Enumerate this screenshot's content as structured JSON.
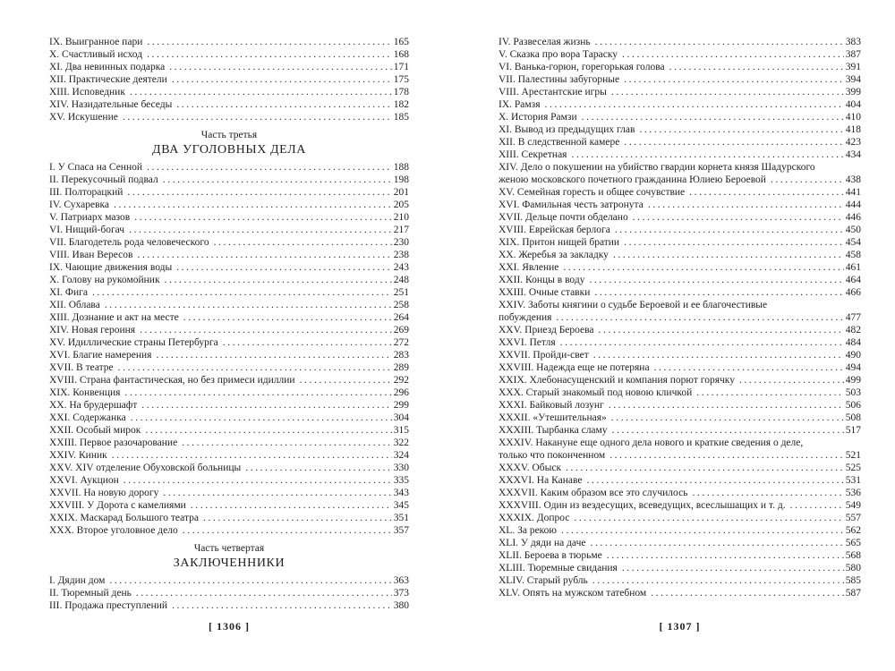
{
  "colors": {
    "background": "#ffffff",
    "text": "#1f1f1f"
  },
  "left_page": {
    "footer": "[ 1306 ]",
    "blocks": [
      {
        "type": "entries",
        "items": [
          {
            "t": "IX. Выигранное пари",
            "p": "165"
          },
          {
            "t": "X. Счастливый исход",
            "p": "168"
          },
          {
            "t": "XI. Два невинных подарка",
            "p": "171"
          },
          {
            "t": "XII. Практические деятели",
            "p": "175"
          },
          {
            "t": "XIII. Исповедник",
            "p": "178"
          },
          {
            "t": "XIV. Назидательные беседы",
            "p": "182"
          },
          {
            "t": "XV. Искушение",
            "p": "185"
          }
        ]
      },
      {
        "type": "heading",
        "part": "Часть третья",
        "title": "ДВА УГОЛОВНЫХ ДЕЛА"
      },
      {
        "type": "entries",
        "items": [
          {
            "t": "I. У Спаса на Сенной",
            "p": "188"
          },
          {
            "t": "II. Перекусочный подвал",
            "p": "198"
          },
          {
            "t": "III. Полторацкий",
            "p": "201"
          },
          {
            "t": "IV. Сухаревка",
            "p": "205"
          },
          {
            "t": "V. Патриарх мазов",
            "p": "210"
          },
          {
            "t": "VI. Нищий-богач",
            "p": "217"
          },
          {
            "t": "VII. Благодетель рода человеческого",
            "p": "230"
          },
          {
            "t": "VIII. Иван Вересов",
            "p": "238"
          },
          {
            "t": "IX. Чающие движения воды",
            "p": "243"
          },
          {
            "t": "X. Голову на рукомойник",
            "p": "248"
          },
          {
            "t": "XI. Фига",
            "p": "251"
          },
          {
            "t": "XII. Облава",
            "p": "258"
          },
          {
            "t": "XIII. Дознание и акт на месте",
            "p": "264"
          },
          {
            "t": "XIV. Новая героиня",
            "p": "269"
          },
          {
            "t": "XV. Идиллические страны Петербурга",
            "p": "272"
          },
          {
            "t": "XVI. Благие намерения",
            "p": "283"
          },
          {
            "t": "XVII. В театре",
            "p": "289"
          },
          {
            "t": "XVIII. Страна фантастическая, но без примеси идиллии",
            "p": "292"
          },
          {
            "t": "XIX. Конвенция",
            "p": "296"
          },
          {
            "t": "XX. На брудершафт",
            "p": "299"
          },
          {
            "t": "XXI. Содержанка",
            "p": "304"
          },
          {
            "t": "XXII. Особый мирок",
            "p": "315"
          },
          {
            "t": "XXIII. Первое разочарование",
            "p": "322"
          },
          {
            "t": "XXIV. Киник",
            "p": "324"
          },
          {
            "t": "XXV. XIV отделение Обуховской больницы",
            "p": "330"
          },
          {
            "t": "XXVI. Аукцион",
            "p": "335"
          },
          {
            "t": "XXVII. На новую дорогу",
            "p": "343"
          },
          {
            "t": "XXVIII. У Дорота с камелиями",
            "p": "345"
          },
          {
            "t": "XXIX. Маскарад Большого театра",
            "p": "351"
          },
          {
            "t": "XXX. Второе уголовное дело",
            "p": "357"
          }
        ]
      },
      {
        "type": "heading",
        "part": "Часть четвертая",
        "title": "ЗАКЛЮЧЕННИКИ"
      },
      {
        "type": "entries",
        "items": [
          {
            "t": "I. Дядин дом",
            "p": "363"
          },
          {
            "t": "II. Тюремный день",
            "p": "373"
          },
          {
            "t": "III. Продажа преступлений",
            "p": "380"
          }
        ]
      }
    ]
  },
  "right_page": {
    "footer": "[ 1307 ]",
    "blocks": [
      {
        "type": "entries",
        "items": [
          {
            "t": "IV. Развеселая жизнь",
            "p": "383"
          },
          {
            "t": "V. Сказка про вора Тараску",
            "p": "387"
          },
          {
            "t": "VI. Ванька-горюн, горегорькая голова",
            "p": "391"
          },
          {
            "t": "VII. Палестины забугорные",
            "p": "394"
          },
          {
            "t": "VIII. Арестантские игры",
            "p": "399"
          },
          {
            "t": "IX. Рамзя",
            "p": "404"
          },
          {
            "t": "X. История Рамзи",
            "p": "410"
          },
          {
            "t": "XI. Вывод из предыдущих глав",
            "p": "418"
          },
          {
            "t": "XII. В следственной камере",
            "p": "423"
          },
          {
            "t": "XIII. Секретная",
            "p": "434"
          },
          {
            "t": "XIV. Дело о покушении на убийство гвардии корнета князя Шадурского",
            "t2": "женою московского почетного гражданина Юлиею Бероевой",
            "p": "438"
          },
          {
            "t": "XV. Семейная горесть и общее сочувствие",
            "p": "441"
          },
          {
            "t": "XVI. Фамильная честь затронута",
            "p": "444"
          },
          {
            "t": "XVII. Дельце почти обделано",
            "p": "446"
          },
          {
            "t": "XVIII. Еврейская берлога",
            "p": "450"
          },
          {
            "t": "XIX. Притон нищей братии",
            "p": "454"
          },
          {
            "t": "XX. Жеребья за закладку",
            "p": "458"
          },
          {
            "t": "XXI. Явление",
            "p": "461"
          },
          {
            "t": "XXII. Концы в воду",
            "p": "464"
          },
          {
            "t": "XXIII. Очные ставки",
            "p": "466"
          },
          {
            "t": "XXIV. Заботы княгини о судьбе Бероевой и ее благочестивые",
            "t2": "побуждения",
            "p": "477"
          },
          {
            "t": "XXV. Приезд Бероева",
            "p": "482"
          },
          {
            "t": "XXVI. Петля",
            "p": "484"
          },
          {
            "t": "XXVII. Пройди-свет",
            "p": "490"
          },
          {
            "t": "XXVIII. Надежда еще не потеряна",
            "p": "494"
          },
          {
            "t": "XXIX. Хлебонасущенский и компания порют горячку",
            "p": "499"
          },
          {
            "t": "XXX. Старый знакомый под новою кличкой",
            "p": "503"
          },
          {
            "t": "XXXI. Байковый лозунг",
            "p": "506"
          },
          {
            "t": "XXXII. «Утешительная»",
            "p": "508"
          },
          {
            "t": "XXXIII. Тырбанка сламу",
            "p": "517"
          },
          {
            "t": "XXXIV. Накануне еще одного дела нового и краткие сведения о деле,",
            "t2": "только что поконченном",
            "p": "521"
          },
          {
            "t": "XXXV. Обыск",
            "p": "525"
          },
          {
            "t": "XXXVI. На Канаве",
            "p": "531"
          },
          {
            "t": "XXXVII. Каким образом все это случилось",
            "p": "536"
          },
          {
            "t": "XXXVIII. Один из вездесущих, всеведущих, всеслышащих и т. д.",
            "p": "549"
          },
          {
            "t": "XXXIX. Допрос",
            "p": "557"
          },
          {
            "t": "XL. За рекою",
            "p": "562"
          },
          {
            "t": "XLI. У дяди на даче",
            "p": "565"
          },
          {
            "t": "XLII. Бероева в тюрьме",
            "p": "568"
          },
          {
            "t": "XLIII. Тюремные свидания",
            "p": "580"
          },
          {
            "t": "XLIV. Старый рубль",
            "p": "585"
          },
          {
            "t": "XLV. Опять на мужском татебном",
            "p": "587"
          }
        ]
      }
    ]
  }
}
